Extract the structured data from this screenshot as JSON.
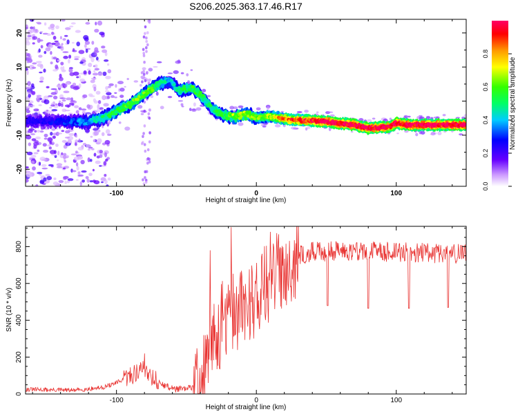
{
  "title": "S206.2025.363.17.46.R17",
  "chart_data": [
    {
      "type": "heatmap",
      "name": "spectrogram",
      "xlabel": "Height of straight line (km)",
      "ylabel": "Frequency (Hz)",
      "xlim": [
        -165,
        150
      ],
      "ylim": [
        -25,
        24
      ],
      "xticks": [
        -100,
        0,
        100
      ],
      "yticks": [
        -20,
        -10,
        0,
        10,
        20
      ],
      "colorbar": {
        "label": "Normalized spectral amplitude",
        "ticks": [
          "0.0",
          "0.2",
          "0.4",
          "0.6",
          "0.8"
        ],
        "tick_values": [
          0.0,
          0.2,
          0.4,
          0.6,
          0.8
        ],
        "range": [
          0,
          1
        ]
      },
      "ridge": {
        "x": [
          -165,
          -140,
          -120,
          -110,
          -100,
          -90,
          -80,
          -70,
          -62,
          -55,
          -47,
          -40,
          -32,
          -25,
          -20,
          -15,
          -10,
          -5,
          0,
          10,
          25,
          50,
          70,
          80,
          95,
          100,
          110,
          130,
          150
        ],
        "y": [
          -6,
          -6,
          -6,
          -5,
          -3,
          -1,
          2,
          5,
          6,
          3,
          4,
          2,
          -2,
          -4,
          -4.5,
          -4.5,
          -4,
          -4,
          -5,
          -4.5,
          -5.5,
          -6,
          -7,
          -8,
          -7.5,
          -6.5,
          -7,
          -7,
          -7
        ],
        "amplitude": [
          0.2,
          0.25,
          0.35,
          0.45,
          0.5,
          0.55,
          0.55,
          0.5,
          0.35,
          0.45,
          0.5,
          0.5,
          0.45,
          0.5,
          0.55,
          0.6,
          0.65,
          0.6,
          0.55,
          0.65,
          0.8,
          0.95,
          0.95,
          0.95,
          0.9,
          0.95,
          0.95,
          0.95,
          0.95
        ]
      }
    },
    {
      "type": "line",
      "name": "snr",
      "xlabel": "Height of straight line (km)",
      "ylabel": "SNR (10 * v/v)",
      "xlim": [
        -165,
        150
      ],
      "ylim": [
        0,
        910
      ],
      "xticks": [
        -100,
        0,
        100
      ],
      "yticks": [
        0,
        200,
        400,
        600,
        800
      ],
      "color": "#e8302e",
      "envelope": {
        "x": [
          -165,
          -130,
          -110,
          -100,
          -90,
          -80,
          -70,
          -60,
          -50,
          -40,
          -35,
          -30,
          -25,
          -20,
          -15,
          -10,
          -5,
          0,
          10,
          20,
          30,
          40,
          60,
          100,
          150
        ],
        "y": [
          25,
          20,
          35,
          60,
          100,
          140,
          60,
          30,
          25,
          60,
          180,
          300,
          380,
          420,
          450,
          470,
          500,
          540,
          620,
          700,
          750,
          770,
          780,
          770,
          760
        ]
      },
      "dips": [
        {
          "x": 51,
          "y": 480
        },
        {
          "x": 80,
          "y": 465
        },
        {
          "x": 109,
          "y": 465
        },
        {
          "x": 137,
          "y": 470
        }
      ],
      "spikes": [
        {
          "x": -18,
          "y": 905
        },
        {
          "x": -33,
          "y": 780
        },
        {
          "x": 10,
          "y": 880
        },
        {
          "x": -80,
          "y": 220
        }
      ]
    }
  ]
}
